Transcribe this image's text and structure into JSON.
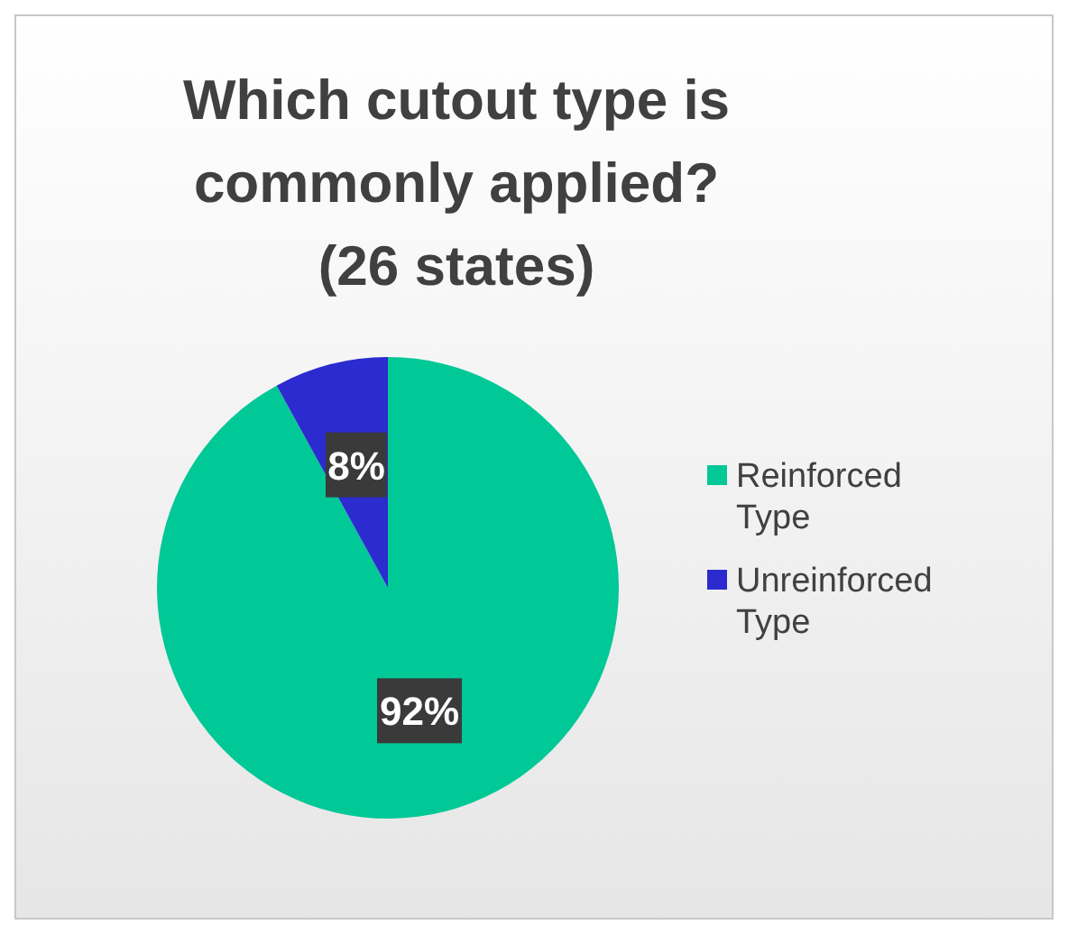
{
  "chart_data": {
    "type": "pie",
    "title": "Which cutout type is commonly applied? (26 states)",
    "categories": [
      "Reinforced Type",
      "Unreinforced Type"
    ],
    "values": [
      92,
      8
    ],
    "colors": [
      "#00c896",
      "#2b2bd0"
    ],
    "value_labels": [
      "92%",
      "8%"
    ],
    "legend": "right"
  }
}
